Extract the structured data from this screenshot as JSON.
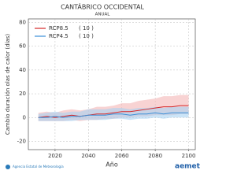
{
  "chart_data": {
    "type": "line",
    "title": "CANTÁBRICO OCCIDENTAL",
    "subtitle": "ANUAL",
    "y_label": "Cambio duración olas de calor (días)",
    "x_label": "Año",
    "x": [
      2010,
      2015,
      2020,
      2025,
      2030,
      2035,
      2040,
      2045,
      2050,
      2055,
      2060,
      2065,
      2070,
      2075,
      2080,
      2085,
      2090,
      2095,
      2100
    ],
    "series": [
      {
        "name": "RCP8.5",
        "count": "( 10 )",
        "color": "#d62728",
        "band_color": "#f4b6b6",
        "values": [
          0,
          1,
          0,
          1,
          2,
          1,
          2,
          3,
          3,
          4,
          5,
          5,
          6,
          7,
          8,
          9,
          9,
          10,
          10
        ],
        "low": [
          -3,
          -3,
          -3,
          -3,
          -2,
          -3,
          -2,
          -2,
          -1,
          -1,
          0,
          0,
          1,
          1,
          2,
          2,
          2,
          3,
          3
        ],
        "high": [
          4,
          5,
          4,
          6,
          7,
          6,
          7,
          9,
          9,
          10,
          12,
          12,
          14,
          15,
          16,
          18,
          18,
          19,
          19
        ]
      },
      {
        "name": "RCP4.5",
        "count": "( 10 )",
        "color": "#3a8fd8",
        "band_color": "#a9d2f2",
        "values": [
          0,
          0,
          1,
          0,
          1,
          1,
          2,
          2,
          2,
          3,
          3,
          2,
          3,
          3,
          4,
          3,
          4,
          4,
          4
        ],
        "low": [
          -3,
          -3,
          -3,
          -3,
          -3,
          -2,
          -2,
          -2,
          -2,
          -1,
          -1,
          -2,
          -1,
          -1,
          0,
          -1,
          0,
          0,
          0
        ],
        "high": [
          3,
          4,
          5,
          4,
          5,
          5,
          7,
          7,
          7,
          8,
          8,
          7,
          8,
          8,
          9,
          8,
          9,
          9,
          9
        ]
      }
    ],
    "xlim": [
      2004,
      2104
    ],
    "xticks": [
      2020,
      2040,
      2060,
      2080,
      2100
    ],
    "ylim": [
      -27,
      83
    ],
    "yticks": [
      -20,
      0,
      20,
      40,
      60,
      80
    ],
    "grid": true
  },
  "footer": {
    "agency": "Agencia Estatal de Meteorología",
    "logo": "aemet"
  }
}
